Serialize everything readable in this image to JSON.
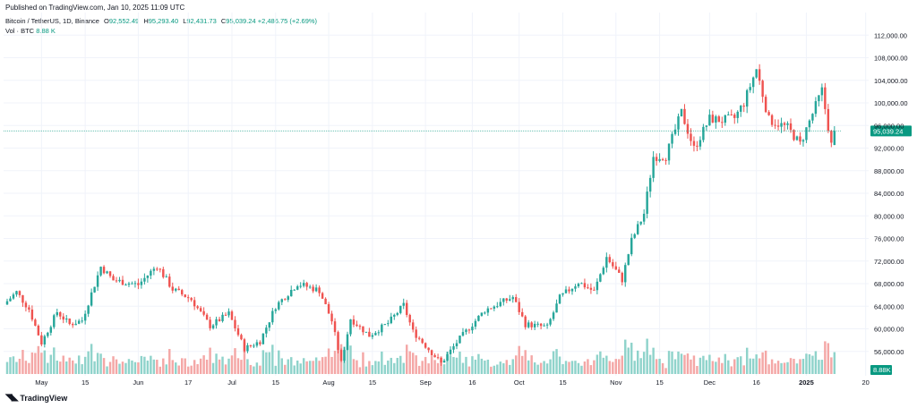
{
  "header": {
    "published": "Published on TradingView.com, Jan 10, 2025 11:09 UTC"
  },
  "legend": {
    "symbol": "Bitcoin / TetherUS, 1D, Binance",
    "o_key": "O",
    "o": "92,552.49",
    "h_key": "H",
    "h": "95,293.40",
    "l_key": "L",
    "l": "92,431.73",
    "c_key": "C",
    "c": "95,039.24",
    "change": "+2,486.75 (+2.69%)",
    "vol_label": "Vol · BTC",
    "vol_value": "8.88 K"
  },
  "branding": {
    "logo_text": "TradingView",
    "logo_icon": "tradingview-logo-icon"
  },
  "colors": {
    "up": "#26a69a",
    "down": "#ef5350",
    "up_vol": "#8fd3cb",
    "down_vol": "#f4a7a6",
    "last_price": "#089981"
  },
  "chart_data": {
    "type": "candlestick",
    "symbol": "BTCUSDT",
    "interval": "1D",
    "x_start": "2024-04-20",
    "x_end": "2025-01-10",
    "ylim": [
      52000,
      116000
    ],
    "y_ticks": [
      56000,
      60000,
      64000,
      68000,
      72000,
      76000,
      80000,
      84000,
      88000,
      92000,
      96000,
      100000,
      104000,
      108000,
      112000
    ],
    "y_tick_labels": [
      "56,000.00",
      "60,000.00",
      "64,000.00",
      "68,000.00",
      "72,000.00",
      "76,000.00",
      "80,000.00",
      "84,000.00",
      "88,000.00",
      "92,000.00",
      "96,000.00",
      "100,000.00",
      "104,000.00",
      "108,000.00",
      "112,000.00"
    ],
    "x_ticks": [
      {
        "label": "May",
        "date": "2024-05-01"
      },
      {
        "label": "15",
        "date": "2024-05-15"
      },
      {
        "label": "Jun",
        "date": "2024-06-01"
      },
      {
        "label": "17",
        "date": "2024-06-17"
      },
      {
        "label": "Jul",
        "date": "2024-07-01"
      },
      {
        "label": "15",
        "date": "2024-07-15"
      },
      {
        "label": "Aug",
        "date": "2024-08-01"
      },
      {
        "label": "15",
        "date": "2024-08-15"
      },
      {
        "label": "Sep",
        "date": "2024-09-01"
      },
      {
        "label": "16",
        "date": "2024-09-16"
      },
      {
        "label": "Oct",
        "date": "2024-10-01"
      },
      {
        "label": "15",
        "date": "2024-10-15"
      },
      {
        "label": "Nov",
        "date": "2024-11-01"
      },
      {
        "label": "15",
        "date": "2024-11-15"
      },
      {
        "label": "Dec",
        "date": "2024-12-01"
      },
      {
        "label": "16",
        "date": "2024-12-16"
      },
      {
        "label": "2025",
        "date": "2025-01-01"
      },
      {
        "label": "20",
        "date": "2025-01-20"
      }
    ],
    "last_price": 95039.24,
    "last_price_label": "95,039.24",
    "volume_label": "8.88K",
    "price_path": [
      [
        "2024-04-20",
        64900
      ],
      [
        "2024-04-23",
        66500
      ],
      [
        "2024-04-27",
        63500
      ],
      [
        "2024-05-01",
        57500
      ],
      [
        "2024-05-06",
        63000
      ],
      [
        "2024-05-10",
        60800
      ],
      [
        "2024-05-14",
        61500
      ],
      [
        "2024-05-20",
        71000
      ],
      [
        "2024-05-24",
        68600
      ],
      [
        "2024-06-01",
        67800
      ],
      [
        "2024-06-07",
        71200
      ],
      [
        "2024-06-12",
        67000
      ],
      [
        "2024-06-18",
        65200
      ],
      [
        "2024-06-24",
        60500
      ],
      [
        "2024-06-30",
        62700
      ],
      [
        "2024-07-05",
        56500
      ],
      [
        "2024-07-10",
        57800
      ],
      [
        "2024-07-15",
        64000
      ],
      [
        "2024-07-22",
        68000
      ],
      [
        "2024-07-29",
        66800
      ],
      [
        "2024-08-02",
        61400
      ],
      [
        "2024-08-05",
        54000
      ],
      [
        "2024-08-08",
        61800
      ],
      [
        "2024-08-14",
        58800
      ],
      [
        "2024-08-20",
        61000
      ],
      [
        "2024-08-25",
        64200
      ],
      [
        "2024-08-28",
        59500
      ],
      [
        "2024-09-06",
        53900
      ],
      [
        "2024-09-12",
        58300
      ],
      [
        "2024-09-20",
        63300
      ],
      [
        "2024-09-29",
        65600
      ],
      [
        "2024-10-03",
        60800
      ],
      [
        "2024-10-10",
        60300
      ],
      [
        "2024-10-14",
        65500
      ],
      [
        "2024-10-20",
        68300
      ],
      [
        "2024-10-25",
        66600
      ],
      [
        "2024-10-29",
        72700
      ],
      [
        "2024-11-03",
        68700
      ],
      [
        "2024-11-06",
        75600
      ],
      [
        "2024-11-10",
        80400
      ],
      [
        "2024-11-13",
        90500
      ],
      [
        "2024-11-17",
        90600
      ],
      [
        "2024-11-22",
        98300
      ],
      [
        "2024-11-26",
        91900
      ],
      [
        "2024-12-01",
        97200
      ],
      [
        "2024-12-05",
        96900
      ],
      [
        "2024-12-09",
        97300
      ],
      [
        "2024-12-12",
        100000
      ],
      [
        "2024-12-16",
        106000
      ],
      [
        "2024-12-20",
        97000
      ],
      [
        "2024-12-26",
        95600
      ],
      [
        "2024-12-30",
        92700
      ],
      [
        "2025-01-03",
        98100
      ],
      [
        "2025-01-06",
        102200
      ],
      [
        "2025-01-09",
        92550
      ],
      [
        "2025-01-10",
        95039
      ]
    ]
  }
}
